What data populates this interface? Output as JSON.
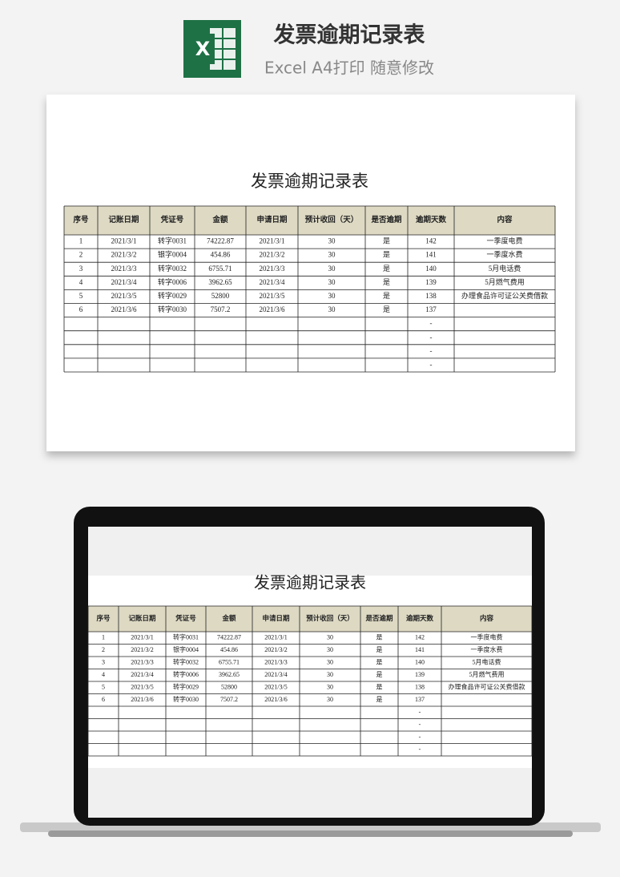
{
  "header": {
    "icon_label": "X",
    "title": "发票逾期记录表",
    "subtitle": "Excel A4打印 随意修改"
  },
  "table": {
    "title": "发票逾期记录表",
    "columns": [
      "序号",
      "记账日期",
      "凭证号",
      "金额",
      "申请日期",
      "预计收回（天）",
      "是否逾期",
      "逾期天数",
      "内容"
    ],
    "rows": [
      [
        1,
        "2021/3/1",
        "转字0031",
        74222.87,
        "2021/3/1",
        30,
        "是",
        142,
        "一季度电费"
      ],
      [
        2,
        "2021/3/2",
        "银字0004",
        454.86,
        "2021/3/2",
        30,
        "是",
        141,
        "一季度水费"
      ],
      [
        3,
        "2021/3/3",
        "转字0032",
        6755.71,
        "2021/3/3",
        30,
        "是",
        140,
        "5月电话费"
      ],
      [
        4,
        "2021/3/4",
        "转字0006",
        3962.65,
        "2021/3/4",
        30,
        "是",
        139,
        "5月燃气费用"
      ],
      [
        5,
        "2021/3/5",
        "转字0029",
        52800,
        "2021/3/5",
        30,
        "是",
        138,
        "办理食品许可证公关费借款"
      ],
      [
        6,
        "2021/3/6",
        "转字0030",
        7507.2,
        "2021/3/6",
        30,
        "是",
        137,
        null
      ],
      [
        null,
        null,
        null,
        null,
        null,
        null,
        null,
        "-",
        null
      ],
      [
        null,
        null,
        null,
        null,
        null,
        null,
        null,
        "-",
        null
      ],
      [
        null,
        null,
        null,
        null,
        null,
        null,
        null,
        "-",
        null
      ],
      [
        null,
        null,
        null,
        null,
        null,
        null,
        null,
        "-",
        null
      ]
    ]
  }
}
